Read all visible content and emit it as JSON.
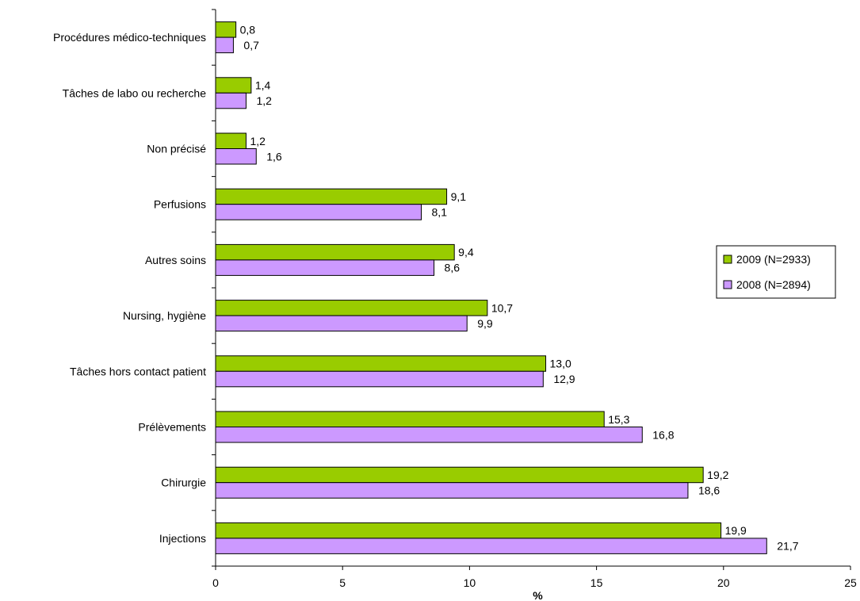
{
  "chart_data": {
    "type": "bar",
    "orientation": "horizontal",
    "categories": [
      "Procédures médico-techniques",
      "Tâches de labo ou recherche",
      "Non précisé",
      "Perfusions",
      "Autres soins",
      "Nursing, hygiène",
      "Tâches hors contact patient",
      "Prélèvements",
      "Chirurgie",
      "Injections"
    ],
    "series": [
      {
        "name": "2009 (N=2933)",
        "color": "#99cc00",
        "values": [
          0.8,
          1.4,
          1.2,
          9.1,
          9.4,
          10.7,
          13.0,
          15.3,
          19.2,
          19.9
        ],
        "labels": [
          "0,8",
          "1,4",
          "1,2",
          "9,1",
          "9,4",
          "10,7",
          "13,0",
          "15,3",
          "19,2",
          "19,9"
        ]
      },
      {
        "name": "2008 (N=2894)",
        "color": "#cc99ff",
        "values": [
          0.7,
          1.2,
          1.6,
          8.1,
          8.6,
          9.9,
          12.9,
          16.8,
          18.6,
          21.7
        ],
        "labels": [
          "0,7",
          "1,2",
          "1,6",
          "8,1",
          "8,6",
          "9,9",
          "12,9",
          "16,8",
          "18,6",
          "21,7"
        ]
      }
    ],
    "xlabel": "%",
    "xlim": [
      0,
      25
    ],
    "xticks": [
      0,
      5,
      10,
      15,
      20,
      25
    ],
    "xtick_labels": [
      "0",
      "5",
      "10",
      "15",
      "20",
      "25"
    ],
    "grid": false,
    "legend_position": "right"
  }
}
